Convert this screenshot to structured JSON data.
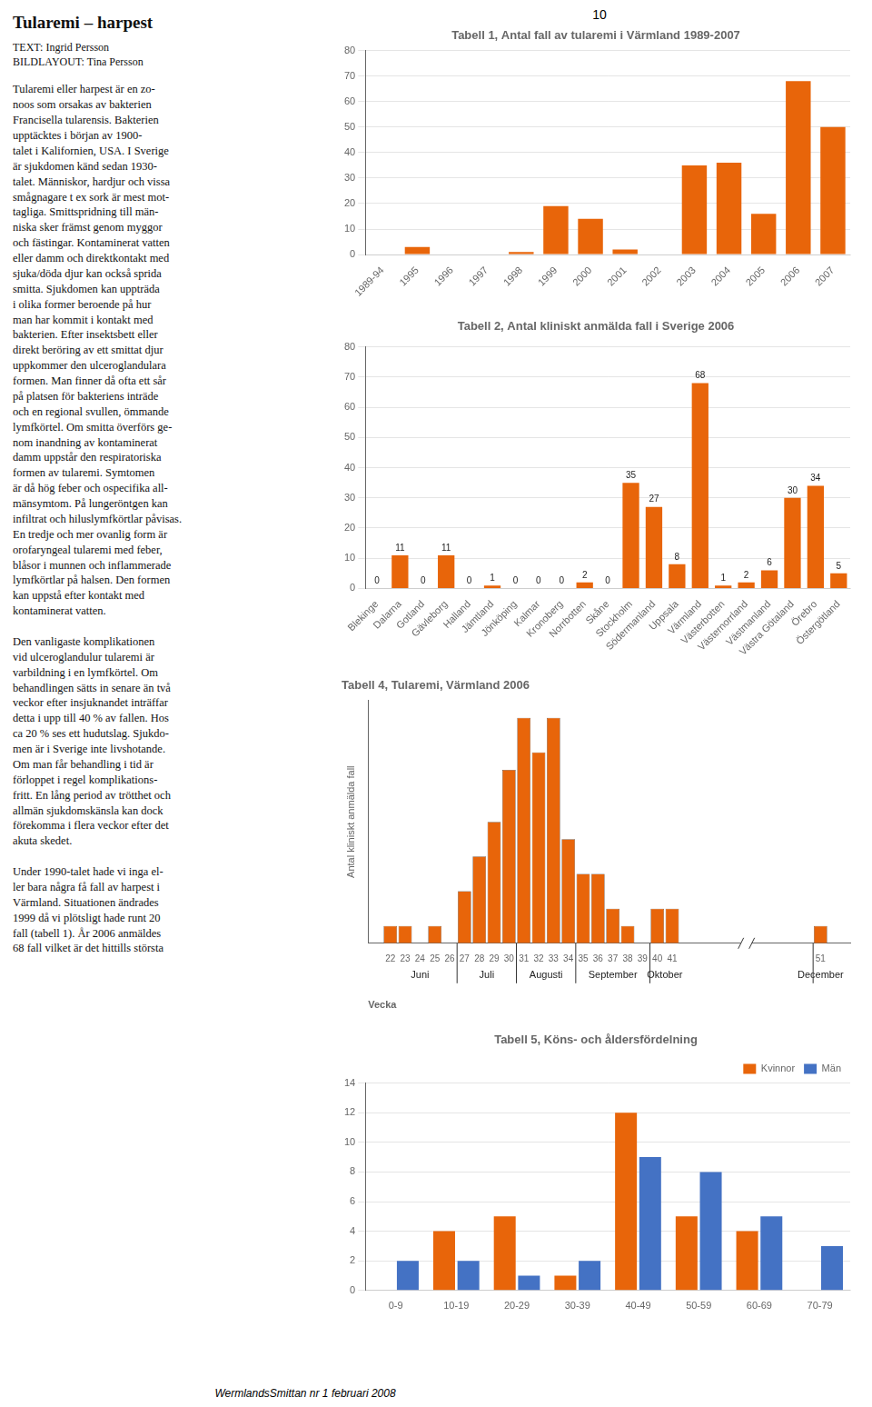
{
  "title": "Tularemi – harpest",
  "subtitle": [
    "TEXT: Ingrid Persson",
    "BILDLAYOUT: Tina Persson"
  ],
  "text": [
    [
      "Tularemi eller harpest är en zo-",
      "noos som orsakas av bakterien",
      "Francisella tularensis. Bakterien",
      "upptäcktes i början av 1900-",
      "talet i Kalifornien, USA. I Sverige",
      "är sjukdomen känd sedan 1930-",
      "talet. Människor, hardjur och vissa",
      "smågnagare t ex sork är mest mot-",
      "tagliga. Smittspridning till män-",
      "niska sker främst genom myggor",
      "och fästingar. Kontaminerat vatten",
      "eller damm och direktkontakt med",
      "sjuka/döda djur kan också sprida",
      "smitta. Sjukdomen kan uppträda",
      "i olika former beroende på hur",
      "man har kommit i kontakt med",
      "bakterien. Efter insektsbett eller",
      "direkt beröring av ett smittat djur",
      "uppkommer den ulceroglandulara",
      "formen. Man finner då ofta ett sår",
      "på platsen för bakteriens inträde",
      "och en regional svullen, ömmande",
      "lymfkörtel. Om smitta överförs ge-",
      "nom inandning av kontaminerat",
      "damm uppstår den respiratoriska",
      "formen av tularemi. Symtomen",
      "är då hög feber och ospecifika all-",
      "mänsymtom. På lungeröntgen kan",
      "infiltrat och hiluslymfkörtlar påvisas.",
      "En tredje och mer ovanlig form är",
      "orofaryngeal tularemi med feber,",
      "blåsor i munnen och inflammerade",
      "lymfkörtlar på halsen. Den formen",
      "kan uppstå efter kontakt med",
      "kontaminerat vatten."
    ],
    [
      "Den vanligaste komplikationen",
      "vid ulceroglandulur tularemi är",
      "varbildning i en lymfkörtel. Om",
      "behandlingen sätts in senare än två",
      "veckor efter insjuknandet inträffar",
      "detta i upp till 40 % av fallen. Hos",
      "ca 20 % ses ett hudutslag. Sjukdo-",
      "men är i Sverige inte livshotande.",
      "Om man får behandling i tid är",
      "förloppet i regel komplikations-",
      "fritt. En lång period av trötthet och",
      "allmän sjukdomskänsla kan dock",
      "förekomma i flera veckor efter det",
      "akuta skedet."
    ],
    [
      "Under 1990-talet hade vi inga el-",
      "ler bara några få fall av harpest i",
      "Värmland. Situationen ändrades",
      "1999 då vi plötsligt hade runt 20",
      "fall (tabell 1). År 2006 anmäldes",
      "68 fall vilket är det hittills största"
    ]
  ],
  "page_number": "10",
  "footer": "WermlandsSmittan nr 1 februari 2008",
  "chart_data": [
    {
      "type": "bar",
      "title": "Tabell 1, Antal fall av tularemi i Värmland 1989-2007",
      "categories": [
        "1989-94",
        "1995",
        "1996",
        "1997",
        "1998",
        "1999",
        "2000",
        "2001",
        "2002",
        "2003",
        "2004",
        "2005",
        "2006",
        "2007"
      ],
      "values": [
        0,
        3,
        0,
        0,
        1,
        19,
        14,
        2,
        0,
        35,
        36,
        16,
        68,
        50
      ],
      "color": "#E8650A",
      "ylim": [
        0,
        80
      ],
      "yticks": [
        0,
        10,
        20,
        30,
        40,
        50,
        60,
        70,
        80
      ],
      "grid": true
    },
    {
      "type": "bar",
      "title": "Tabell 2, Antal kliniskt anmälda fall i Sverige 2006",
      "categories": [
        "Blekinge",
        "Dalarna",
        "Gotland",
        "Gävleborg",
        "Halland",
        "Jämtland",
        "Jönköping",
        "Kalmar",
        "Kronoberg",
        "Norrbotten",
        "Skåne",
        "Stockholm",
        "Södermanland",
        "Uppsala",
        "Värmland",
        "Västerbotten",
        "Västernorrland",
        "Västmanland",
        "Västra Götaland",
        "Örebro",
        "Östergötland"
      ],
      "values": [
        0,
        11,
        0,
        11,
        0,
        1,
        0,
        0,
        0,
        2,
        0,
        35,
        27,
        8,
        68,
        1,
        2,
        6,
        30,
        34,
        5
      ],
      "color": "#E8650A",
      "ylim": [
        0,
        80
      ],
      "yticks": [
        0,
        10,
        20,
        30,
        40,
        50,
        60,
        70,
        80
      ],
      "grid": true,
      "data_labels": true
    },
    {
      "type": "bar",
      "title": "Tabell 4, Tularemi, Värmland 2006",
      "x": [
        22,
        23,
        24,
        25,
        26,
        27,
        28,
        29,
        30,
        31,
        32,
        33,
        34,
        35,
        36,
        37,
        38,
        39,
        40,
        41,
        51
      ],
      "values": [
        1,
        1,
        0,
        1,
        0,
        3,
        5,
        7,
        10,
        13,
        11,
        13,
        6,
        4,
        4,
        2,
        1,
        0,
        2,
        2,
        1
      ],
      "color": "#E8650A",
      "xlim": [
        20.5,
        53
      ],
      "xticks": [
        22,
        23,
        24,
        25,
        26,
        27,
        28,
        29,
        30,
        31,
        32,
        33,
        34,
        35,
        36,
        37,
        38,
        39,
        40,
        41,
        51
      ],
      "ylim": [
        0,
        14
      ],
      "xlabel": "Vecka",
      "ylabel": "Antal kliniskt anmälda fall",
      "tick_labels": "x",
      "grid": false,
      "annotations": [
        {
          "text": "Juni",
          "x_start": 22,
          "x_end": 26
        },
        {
          "text": "Juli",
          "x_start": 27,
          "x_end": 30
        },
        {
          "text": "Augusti",
          "x_start": 31,
          "x_end": 34
        },
        {
          "text": "September",
          "x_start": 35,
          "x_end": 39
        },
        {
          "text": "Oktober",
          "x_start": 40,
          "x_end": 41
        },
        {
          "text": "December",
          "x_start": 51,
          "x_end": 51
        }
      ]
    },
    {
      "type": "bar",
      "title": "Tabell 5, Köns- och åldersfördelning",
      "categories": [
        "0-9",
        "10-19",
        "20-29",
        "30-39",
        "40-49",
        "50-59",
        "60-69",
        "70-79"
      ],
      "series": [
        {
          "name": "Kvinnor",
          "color": "#E8650A",
          "values": [
            0,
            4,
            5,
            1,
            12,
            5,
            4,
            0
          ]
        },
        {
          "name": "Män",
          "color": "#4472C4",
          "values": [
            2,
            2,
            1,
            2,
            9,
            8,
            5,
            3
          ]
        }
      ],
      "ylim": [
        0,
        14
      ],
      "yticks": [
        0,
        2,
        4,
        6,
        8,
        10,
        12,
        14
      ],
      "grid": true,
      "legend": "upper right"
    }
  ]
}
